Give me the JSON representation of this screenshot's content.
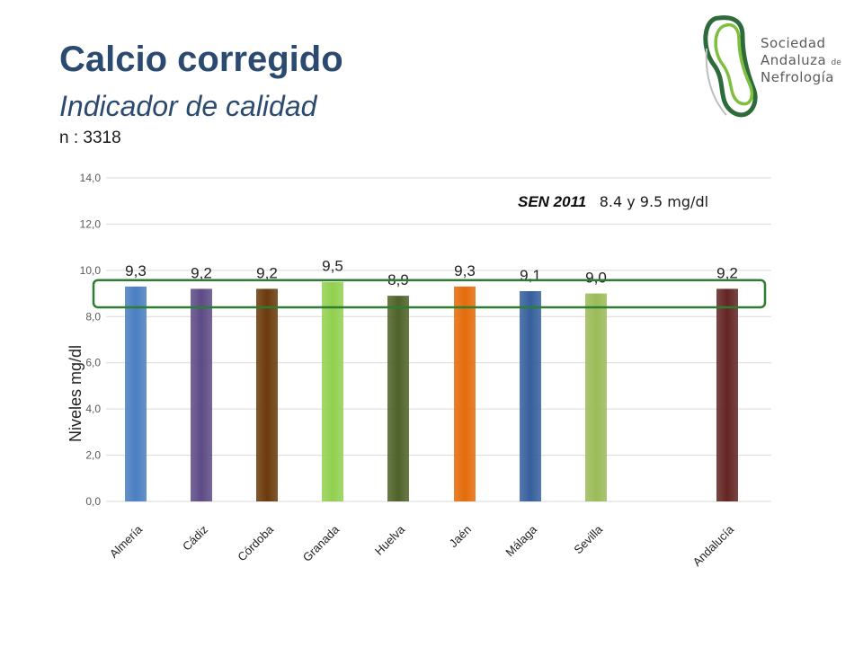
{
  "header": {
    "title": "Calcio corregido",
    "subtitle": "Indicador de calidad",
    "sample_size": "n : 3318"
  },
  "logo": {
    "line1": "Sociedad",
    "line2": "Andaluza",
    "line2_small": "de",
    "line3": "Nefrología",
    "colors": {
      "ring_dark": "#2e6b3a",
      "ring_light": "#7fbf3f",
      "ring_grey": "#bdbdbd"
    }
  },
  "annotation": {
    "label": "SEN 2011",
    "range": "8.4 y 9.5 mg/dl",
    "target_min": 8.4,
    "target_max": 9.5,
    "box_color": "#2e7d32"
  },
  "chart_data": {
    "type": "bar",
    "title": "",
    "xlabel": "",
    "ylabel": "Niveles mg/dl",
    "ylim": [
      0,
      14
    ],
    "yticks": [
      "0,0",
      "2,0",
      "4,0",
      "6,0",
      "8,0",
      "10,0",
      "12,0",
      "14,0"
    ],
    "grid": true,
    "categories": [
      "Almería",
      "Cádiz",
      "Córdoba",
      "Granada",
      "Huelva",
      "Jaén",
      "Málaga",
      "Sevilla",
      "Andalucía"
    ],
    "values": [
      9.3,
      9.2,
      9.2,
      9.5,
      8.9,
      9.3,
      9.1,
      9.0,
      9.2
    ],
    "value_labels": [
      "9,3",
      "9,2",
      "9,2",
      "9,5",
      "8,9",
      "9,3",
      "9,1",
      "9,0",
      "9,2"
    ],
    "colors": [
      "#4a7fc1",
      "#5e4b86",
      "#6b3a0c",
      "#92d050",
      "#4f6228",
      "#e46c0a",
      "#36609c",
      "#9bbb59",
      "#632523"
    ]
  }
}
